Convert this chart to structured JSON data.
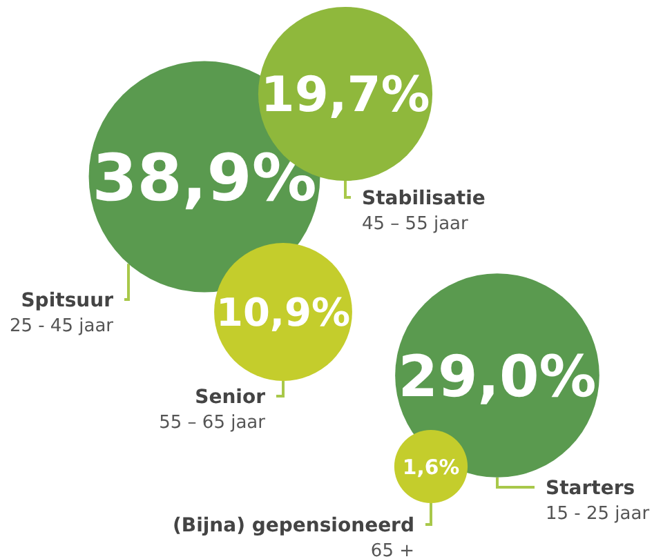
{
  "chart_data": {
    "type": "other",
    "categories": [
      "Spitsuur",
      "Stabilisatie",
      "Senior",
      "Starters",
      "(Bijna) gepensioneerd"
    ],
    "values": [
      38.9,
      19.7,
      10.9,
      29.0,
      1.6
    ],
    "value_labels": [
      "38,9%",
      "19,7%",
      "10,9%",
      "29,0%",
      "1,6%"
    ],
    "colors": [
      "#5a9a4f",
      "#8fb83c",
      "#c4cd2c",
      "#5a9a4f",
      "#c4cd2c"
    ],
    "annotations": [
      "25 - 45 jaar",
      "45 – 55 jaar",
      "55 – 65 jaar",
      "15 - 25 jaar",
      "65 +"
    ]
  }
}
